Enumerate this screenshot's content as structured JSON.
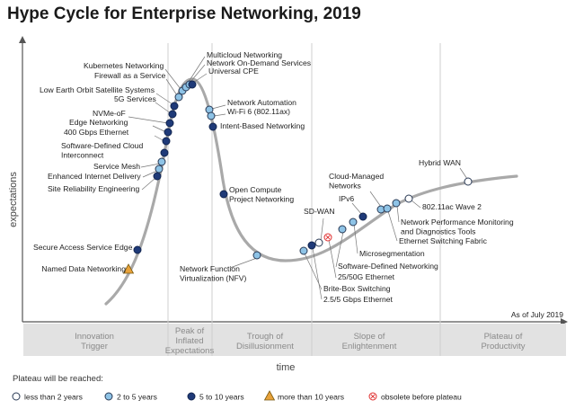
{
  "colors": {
    "less_than_2": "#ffffff",
    "2_to_5": "#8ec3e6",
    "5_to_10": "#1f3a78",
    "more_than_10": "#e8a23a",
    "obsolete": "#e03030",
    "curve": "#a9a9a9",
    "phase_bar": "#e2e2e2"
  },
  "chart_data": {
    "type": "scatter",
    "title": "Hype Cycle for Enterprise Networking, 2019",
    "xlabel": "time",
    "ylabel": "expectations",
    "as_of": "As of July 2019",
    "phases": [
      {
        "id": "innovation",
        "lines": [
          "Innovation",
          "Trigger"
        ]
      },
      {
        "id": "peak",
        "lines": [
          "Peak of",
          "Inflated",
          "Expectations"
        ]
      },
      {
        "id": "trough",
        "lines": [
          "Trough of",
          "Disillusionment"
        ]
      },
      {
        "id": "slope",
        "lines": [
          "Slope of",
          "Enlightenment"
        ]
      },
      {
        "id": "plateau",
        "lines": [
          "Plateau of",
          "Productivity"
        ]
      }
    ],
    "legend_title": "Plateau will be reached:",
    "legend": [
      {
        "key": "lt2",
        "label": "less than 2 years",
        "marker": "circle-white"
      },
      {
        "key": "2to5",
        "label": "2 to 5 years",
        "marker": "circle-light"
      },
      {
        "key": "5to10",
        "label": "5 to 10 years",
        "marker": "circle-dark"
      },
      {
        "key": "gt10",
        "label": "more than 10 years",
        "marker": "triangle"
      },
      {
        "key": "obs",
        "label": "obsolete before plateau",
        "marker": "obsolete"
      }
    ],
    "technologies": [
      {
        "name": "Named Data Networking",
        "plateau": "gt10"
      },
      {
        "name": "Secure Access Service Edge",
        "plateau": "5to10"
      },
      {
        "name": "Site Reliability Engineering",
        "plateau": "5to10"
      },
      {
        "name": "Enhanced Internet Delivery",
        "plateau": "2to5"
      },
      {
        "name": "Service Mesh",
        "plateau": "2to5"
      },
      {
        "name": "Software-Defined Cloud Interconnect",
        "lines": [
          "Software-Defined Cloud",
          "Interconnect"
        ],
        "plateau": "5to10"
      },
      {
        "name": "400 Gbps Ethernet",
        "plateau": "5to10"
      },
      {
        "name": "Edge Networking",
        "plateau": "5to10"
      },
      {
        "name": "NVMe-oF",
        "plateau": "5to10"
      },
      {
        "name": "5G Services",
        "plateau": "5to10"
      },
      {
        "name": "Low Earth Orbit Satellite Systems",
        "plateau": "5to10"
      },
      {
        "name": "Firewall as a Service",
        "plateau": "2to5"
      },
      {
        "name": "Kubernetes Networking",
        "plateau": "2to5"
      },
      {
        "name": "Multicloud Networking",
        "plateau": "2to5"
      },
      {
        "name": "Network On-Demand Services",
        "plateau": "2to5"
      },
      {
        "name": "Universal CPE",
        "plateau": "5to10"
      },
      {
        "name": "Network Automation",
        "plateau": "2to5"
      },
      {
        "name": "Wi-Fi 6 (802.11ax)",
        "plateau": "2to5"
      },
      {
        "name": "Intent-Based Networking",
        "plateau": "5to10"
      },
      {
        "name": "Open Compute Project Networking",
        "lines": [
          "Open Compute",
          "Project Networking"
        ],
        "plateau": "5to10"
      },
      {
        "name": "Network Function Virtualization (NFV)",
        "lines": [
          "Network Function",
          "Virtualization (NFV)"
        ],
        "plateau": "2to5"
      },
      {
        "name": "Brite-Box Switching",
        "plateau": "2to5"
      },
      {
        "name": "2.5/5 Gbps Ethernet",
        "plateau": "5to10"
      },
      {
        "name": "SD-WAN",
        "plateau": "lt2"
      },
      {
        "name": "25/50G Ethernet",
        "plateau": "obs"
      },
      {
        "name": "Software-Defined Networking",
        "plateau": "2to5"
      },
      {
        "name": "Microsegmentation",
        "plateau": "2to5"
      },
      {
        "name": "IPv6",
        "plateau": "5to10"
      },
      {
        "name": "Cloud-Managed Networks",
        "lines": [
          "Cloud-Managed",
          "Networks"
        ],
        "plateau": "2to5"
      },
      {
        "name": "Ethernet Switching Fabric",
        "plateau": "2to5"
      },
      {
        "name": "Network Performance Monitoring and Diagnostics Tools",
        "lines": [
          "Network Performance Monitoring",
          "and Diagnostics Tools"
        ],
        "plateau": "2to5"
      },
      {
        "name": "802.11ac Wave 2",
        "plateau": "lt2"
      },
      {
        "name": "Hybrid WAN",
        "plateau": "lt2"
      }
    ]
  }
}
